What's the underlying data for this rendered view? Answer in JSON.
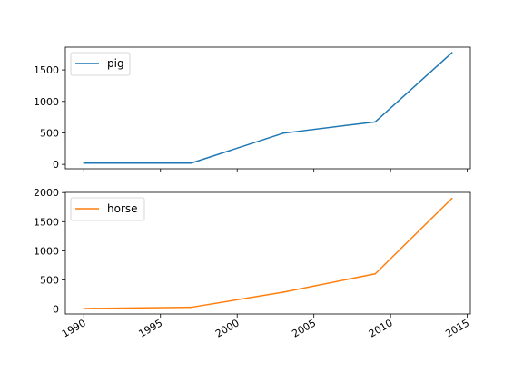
{
  "chart_data": [
    {
      "type": "line",
      "series": [
        {
          "name": "pig",
          "color": "#1f77b4",
          "x": [
            1990.0,
            1997.0,
            2003.0,
            2009.0,
            2014.0
          ],
          "y": [
            20,
            20,
            495,
            675,
            1775
          ]
        }
      ],
      "xlim": [
        1988.8,
        2015.2
      ],
      "ylim": [
        -70,
        1862
      ],
      "yticks": [
        0,
        500,
        1000,
        1500
      ],
      "xticks": [
        1990,
        1995,
        2000,
        2005,
        2010,
        2015
      ],
      "show_xtick_labels": false,
      "legend": "top-left",
      "grid": false
    },
    {
      "type": "line",
      "series": [
        {
          "name": "horse",
          "color": "#ff7f0e",
          "x": [
            1990.0,
            1997.0,
            2003.0,
            2009.0,
            2014.0
          ],
          "y": [
            10,
            30,
            290,
            605,
            1900
          ]
        }
      ],
      "xlim": [
        1988.8,
        2015.2
      ],
      "ylim": [
        -84,
        2003
      ],
      "yticks": [
        0,
        500,
        1000,
        1500,
        2000
      ],
      "xticks": [
        1990,
        1995,
        2000,
        2005,
        2010,
        2015
      ],
      "xtick_labels": [
        "1990",
        "1995",
        "2000",
        "2005",
        "2010",
        "2015"
      ],
      "show_xtick_labels": true,
      "legend": "top-left",
      "grid": false
    }
  ]
}
